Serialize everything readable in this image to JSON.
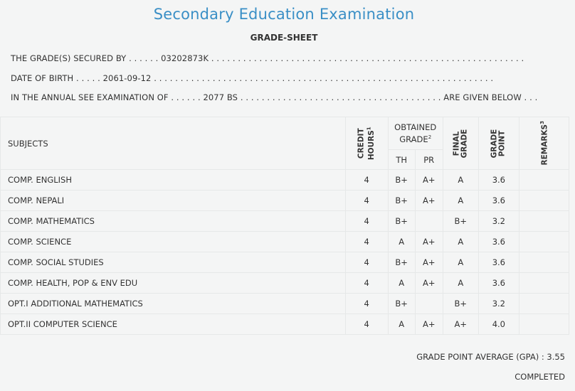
{
  "header": {
    "title": "Secondary Education Examination",
    "subtitle": "GRADE-SHEET"
  },
  "info": {
    "secured_by": "THE GRADE(S) SECURED BY . . . . . . 03202873K . . . . . . . . . . . . . . . . . . . . . . . . . . . . . . . . . . . . . . . . . . . . . . . . . . . . . . . . . . .",
    "dob": "DATE OF BIRTH . . . . . 2061-09-12 . . . . . . . . . . . . . . . . . . . . . . . . . . . . . . . . . . . . . . . . . . . . . . . . . . . . . . . . . . . . . . . .",
    "exam": "IN THE ANNUAL SEE EXAMINATION OF . . . . . . 2077 BS . . . . . . . . . . . . . . . . . . . . . . . . . . . . . . . . . . . . . . ARE GIVEN BELOW . . ."
  },
  "table": {
    "headers": {
      "subjects": "SUBJECTS",
      "credit_line1": "CREDIT",
      "credit_line2": "HOURS",
      "credit_sup": "1",
      "obtained_line1": "OBTAINED",
      "obtained_line2": "GRADE",
      "obtained_sup": "2",
      "th": "TH",
      "pr": "PR",
      "final_line1": "FINAL",
      "final_line2": "GRADE",
      "gp_line1": "GRADE",
      "gp_line2": "POINT",
      "remarks": "REMARKS",
      "remarks_sup": "3"
    },
    "rows": [
      {
        "subject": "COMP. ENGLISH",
        "credit": "4",
        "th": "B+",
        "pr": "A+",
        "final": "A",
        "gp": "3.6",
        "remarks": ""
      },
      {
        "subject": "COMP. NEPALI",
        "credit": "4",
        "th": "B+",
        "pr": "A+",
        "final": "A",
        "gp": "3.6",
        "remarks": ""
      },
      {
        "subject": "COMP. MATHEMATICS",
        "credit": "4",
        "th": "B+",
        "pr": "",
        "final": "B+",
        "gp": "3.2",
        "remarks": ""
      },
      {
        "subject": "COMP. SCIENCE",
        "credit": "4",
        "th": "A",
        "pr": "A+",
        "final": "A",
        "gp": "3.6",
        "remarks": ""
      },
      {
        "subject": "COMP. SOCIAL STUDIES",
        "credit": "4",
        "th": "B+",
        "pr": "A+",
        "final": "A",
        "gp": "3.6",
        "remarks": ""
      },
      {
        "subject": "COMP. HEALTH, POP & ENV EDU",
        "credit": "4",
        "th": "A",
        "pr": "A+",
        "final": "A",
        "gp": "3.6",
        "remarks": ""
      },
      {
        "subject": "OPT.I ADDITIONAL MATHEMATICS",
        "credit": "4",
        "th": "B+",
        "pr": "",
        "final": "B+",
        "gp": "3.2",
        "remarks": ""
      },
      {
        "subject": "OPT.II COMPUTER SCIENCE",
        "credit": "4",
        "th": "A",
        "pr": "A+",
        "final": "A+",
        "gp": "4.0",
        "remarks": ""
      }
    ]
  },
  "footer": {
    "gpa": "GRADE POINT AVERAGE (GPA) : 3.55",
    "status": "COMPLETED"
  },
  "colors": {
    "title": "#3a8fc6",
    "background": "#f4f5f5"
  }
}
